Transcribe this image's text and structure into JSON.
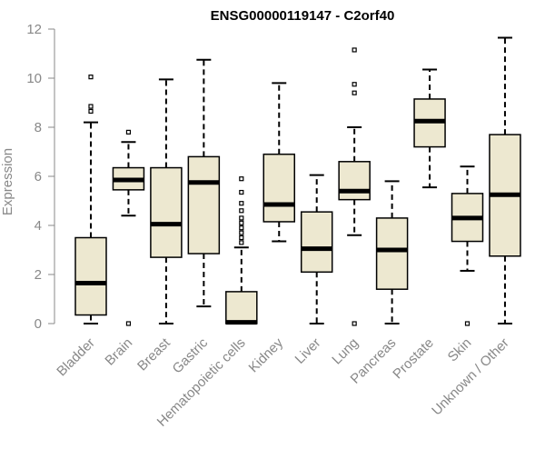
{
  "chart_data": {
    "type": "box",
    "title": "ENSG00000119147 - C2orf40",
    "xlabel": "",
    "ylabel": "Expression",
    "ylim": [
      0,
      12
    ],
    "yticks": [
      0,
      2,
      4,
      6,
      8,
      10,
      12
    ],
    "grid": false,
    "colors": {
      "box_fill": "#ede8d0",
      "axis": "#888888",
      "stroke": "#000000"
    },
    "categories": [
      "Bladder",
      "Brain",
      "Breast",
      "Gastric",
      "Hematopoietic cells",
      "Kidney",
      "Liver",
      "Lung",
      "Pancreas",
      "Prostate",
      "Skin",
      "Unknown / Other"
    ],
    "boxes": [
      {
        "category": "Bladder",
        "whisker_low": 0,
        "q1": 0.35,
        "median": 1.65,
        "q3": 3.5,
        "whisker_high": 8.2,
        "outliers": [
          8.65,
          8.85,
          10.05
        ]
      },
      {
        "category": "Brain",
        "whisker_low": 4.4,
        "q1": 5.45,
        "median": 5.85,
        "q3": 6.35,
        "whisker_high": 7.4,
        "outliers": [
          0,
          7.8
        ]
      },
      {
        "category": "Breast",
        "whisker_low": 0,
        "q1": 2.7,
        "median": 4.05,
        "q3": 6.35,
        "whisker_high": 9.95,
        "outliers": []
      },
      {
        "category": "Gastric",
        "whisker_low": 0.7,
        "q1": 2.85,
        "median": 5.75,
        "q3": 6.8,
        "whisker_high": 10.75,
        "outliers": []
      },
      {
        "category": "Hematopoietic cells",
        "whisker_low": 0,
        "q1": 0,
        "median": 0.05,
        "q3": 1.3,
        "whisker_high": 3.1,
        "outliers": [
          3.3,
          3.5,
          3.7,
          3.9,
          4.1,
          4.3,
          4.6,
          4.9,
          5.35,
          5.9
        ]
      },
      {
        "category": "Kidney",
        "whisker_low": 3.35,
        "q1": 4.15,
        "median": 4.85,
        "q3": 6.9,
        "whisker_high": 9.8,
        "outliers": []
      },
      {
        "category": "Liver",
        "whisker_low": 0,
        "q1": 2.1,
        "median": 3.05,
        "q3": 4.55,
        "whisker_high": 6.05,
        "outliers": []
      },
      {
        "category": "Lung",
        "whisker_low": 3.6,
        "q1": 5.05,
        "median": 5.4,
        "q3": 6.6,
        "whisker_high": 8.0,
        "outliers": [
          0,
          9.4,
          9.75,
          11.15
        ]
      },
      {
        "category": "Pancreas",
        "whisker_low": 0,
        "q1": 1.4,
        "median": 3.0,
        "q3": 4.3,
        "whisker_high": 5.8,
        "outliers": []
      },
      {
        "category": "Prostate",
        "whisker_low": 5.55,
        "q1": 7.2,
        "median": 8.25,
        "q3": 9.15,
        "whisker_high": 10.35,
        "outliers": []
      },
      {
        "category": "Skin",
        "whisker_low": 2.15,
        "q1": 3.35,
        "median": 4.3,
        "q3": 5.3,
        "whisker_high": 6.4,
        "outliers": [
          0
        ]
      },
      {
        "category": "Unknown / Other",
        "whisker_low": 0,
        "q1": 2.75,
        "median": 5.25,
        "q3": 7.7,
        "whisker_high": 11.65,
        "outliers": []
      }
    ]
  }
}
